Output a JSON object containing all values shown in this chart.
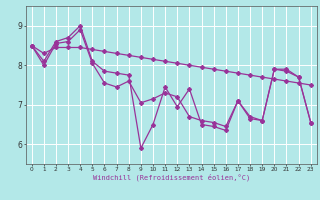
{
  "xlabel": "Windchill (Refroidissement éolien,°C)",
  "background_color": "#b3e8e8",
  "grid_color": "#ffffff",
  "line_color": "#993399",
  "hours": [
    0,
    1,
    2,
    3,
    4,
    5,
    6,
    7,
    8,
    9,
    10,
    11,
    12,
    13,
    14,
    15,
    16,
    17,
    18,
    19,
    20,
    21,
    22,
    23
  ],
  "series1": [
    8.5,
    8.1,
    8.6,
    8.7,
    9.0,
    8.1,
    7.85,
    7.8,
    7.75,
    5.9,
    6.5,
    7.45,
    6.95,
    7.4,
    6.5,
    6.45,
    6.35,
    7.1,
    6.7,
    6.6,
    7.9,
    7.9,
    7.7,
    6.55
  ],
  "series2": [
    8.5,
    8.3,
    8.45,
    8.45,
    8.45,
    8.4,
    8.35,
    8.3,
    8.25,
    8.2,
    8.15,
    8.1,
    8.05,
    8.0,
    7.95,
    7.9,
    7.85,
    7.8,
    7.75,
    7.7,
    7.65,
    7.6,
    7.55,
    7.5
  ],
  "series3": [
    8.5,
    8.0,
    8.55,
    8.6,
    8.9,
    8.05,
    7.55,
    7.45,
    7.6,
    7.05,
    7.15,
    7.3,
    7.2,
    6.7,
    6.6,
    6.55,
    6.45,
    7.1,
    6.65,
    6.6,
    7.9,
    7.85,
    7.7,
    6.55
  ],
  "ylim": [
    5.5,
    9.5
  ],
  "yticks": [
    6,
    7,
    8,
    9
  ],
  "xlim": [
    -0.5,
    23.5
  ],
  "xticks": [
    0,
    1,
    2,
    3,
    4,
    5,
    6,
    7,
    8,
    9,
    10,
    11,
    12,
    13,
    14,
    15,
    16,
    17,
    18,
    19,
    20,
    21,
    22,
    23
  ]
}
